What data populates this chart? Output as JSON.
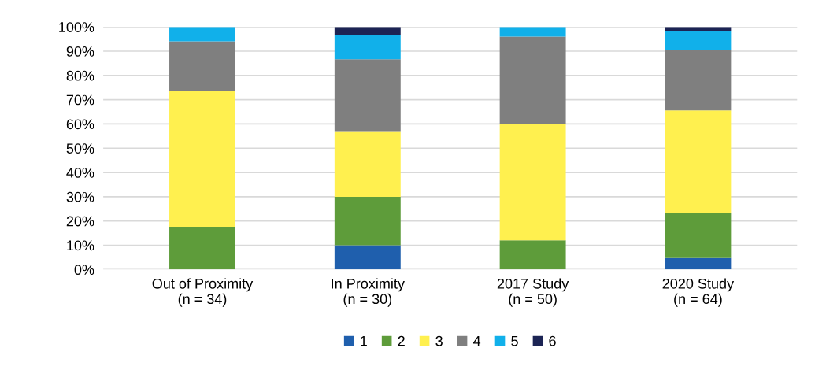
{
  "chart_data": {
    "type": "bar",
    "stacked": true,
    "categories": [
      "Out of Proximity\n(n = 34)",
      "In Proximity\n(n = 30)",
      "2017 Study\n(n = 50)",
      "2020 Study\n(n = 64)"
    ],
    "series": [
      {
        "name": "1",
        "color": "#1f5fad",
        "values": [
          0,
          10,
          0,
          4.7
        ]
      },
      {
        "name": "2",
        "color": "#5e9c3a",
        "values": [
          17.6,
          20,
          12,
          18.7
        ]
      },
      {
        "name": "3",
        "color": "#fff04f",
        "values": [
          55.9,
          26.7,
          48,
          42.2
        ]
      },
      {
        "name": "4",
        "color": "#7f7f7f",
        "values": [
          20.6,
          30,
          36,
          25
        ]
      },
      {
        "name": "5",
        "color": "#11b0ea",
        "values": [
          5.9,
          10,
          4,
          7.8
        ]
      },
      {
        "name": "6",
        "color": "#1c2454",
        "values": [
          0,
          3.3,
          0,
          1.6
        ]
      }
    ],
    "ylim": [
      0,
      100
    ],
    "yticks": [
      {
        "value": 0,
        "label": "0%"
      },
      {
        "value": 10,
        "label": "10%"
      },
      {
        "value": 20,
        "label": "20%"
      },
      {
        "value": 30,
        "label": "30%"
      },
      {
        "value": 40,
        "label": "40%"
      },
      {
        "value": 50,
        "label": "50%"
      },
      {
        "value": 60,
        "label": "60%"
      },
      {
        "value": 70,
        "label": "70%"
      },
      {
        "value": 80,
        "label": "80%"
      },
      {
        "value": 90,
        "label": "90%"
      },
      {
        "value": 100,
        "label": "100%"
      }
    ],
    "grid": "y",
    "legend": "bottom"
  }
}
